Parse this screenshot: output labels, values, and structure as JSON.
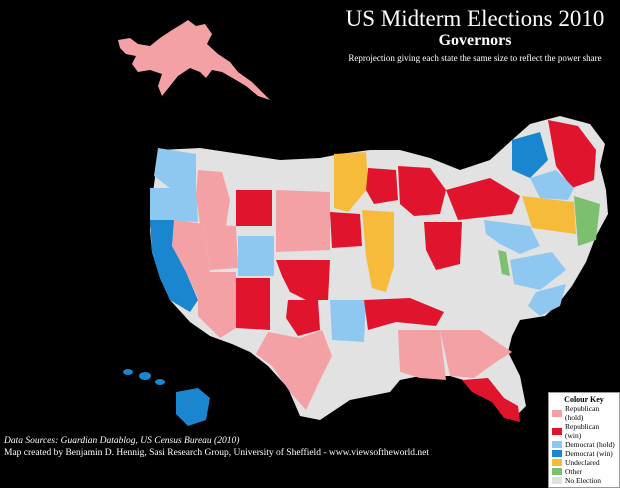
{
  "title": "US Midterm Elections 2010",
  "subtitle": "Governors",
  "note": "Reprojection giving each state the same size to reflect the power share",
  "sources": "Data Sources: Guardian Datablog, US Census Bureau (2010)",
  "credit": "Map created by Benjamin D. Hennig, Sasi Research Group, University of Sheffield - www.viewsoftheworld.net",
  "legend": {
    "title": "Colour Key",
    "items": [
      {
        "label": "Republican (hold)",
        "color": "#f4a1a6"
      },
      {
        "label": "Republican (win)",
        "color": "#e0152d"
      },
      {
        "label": "Democrat (hold)",
        "color": "#8ec8f0"
      },
      {
        "label": "Democrat (win)",
        "color": "#1a86d0"
      },
      {
        "label": "Undeclared",
        "color": "#f6bb3a"
      },
      {
        "label": "Other",
        "color": "#7cbf6e"
      },
      {
        "label": "No Election",
        "color": "#e0e0e0"
      }
    ]
  }
}
